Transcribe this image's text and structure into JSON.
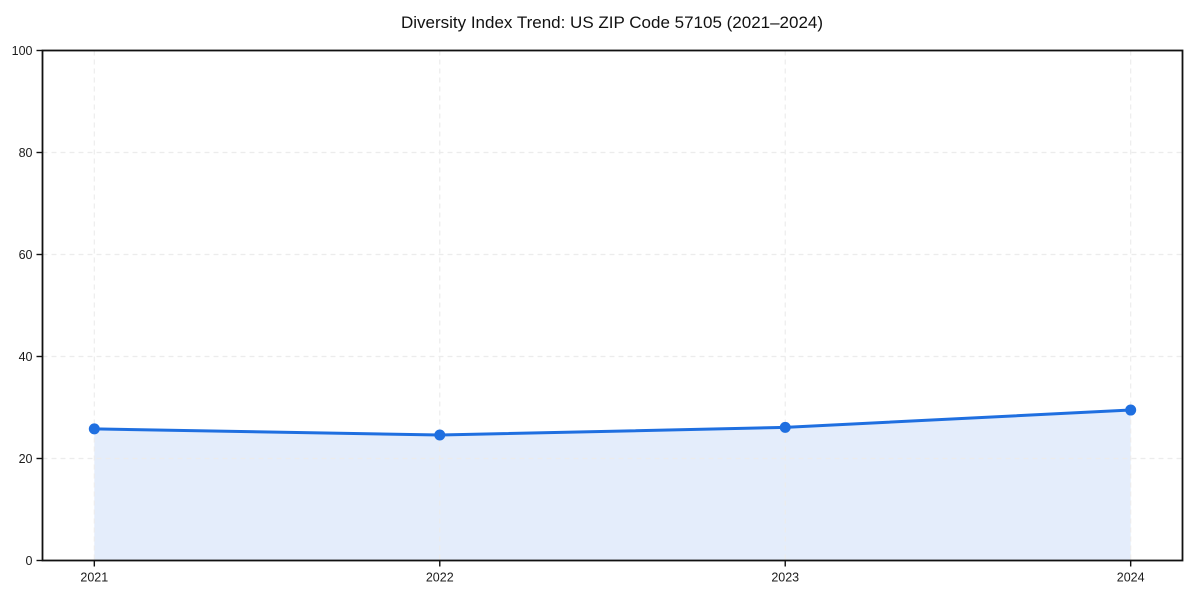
{
  "page": {
    "background": "#ffffff"
  },
  "chart_data": {
    "type": "line",
    "title": "Diversity Index Trend: US ZIP Code 57105 (2021–2024)",
    "x": [
      2021,
      2022,
      2023,
      2024
    ],
    "x_tick_labels": [
      "2021",
      "2022",
      "2023",
      "2024"
    ],
    "y_ticks": [
      0,
      20,
      40,
      60,
      80,
      100
    ],
    "y_tick_labels": [
      "0",
      "20",
      "40",
      "60",
      "80",
      "100"
    ],
    "series": [
      {
        "name": "Diversity Index",
        "values": [
          25.8,
          24.6,
          26.1,
          29.5
        ],
        "color": "#1f6fe0",
        "fill_color": "#e4edfb",
        "marker": "circle"
      }
    ],
    "ylim": [
      0,
      100
    ],
    "xlim": [
      2020.85,
      2024.15
    ],
    "grid": "dashed",
    "grid_color": "#ececec",
    "spine_color": "#111111",
    "text_color": "#1c1c1c",
    "legend": "none",
    "area": true,
    "xlabel": "",
    "ylabel": ""
  }
}
